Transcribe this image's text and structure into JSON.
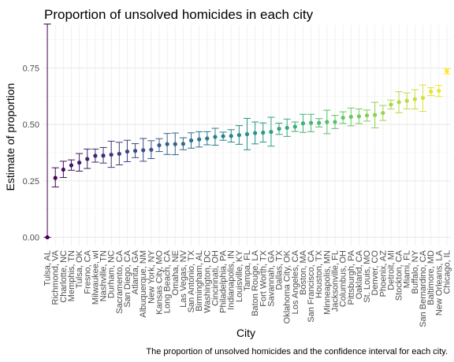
{
  "chart_data": {
    "type": "scatter",
    "title": "Proportion of unsolved homicides in each city",
    "xlabel": "City",
    "ylabel": "Estimate of proportion",
    "caption": "The proportion of unsolved homicides and the confidence interval for each city.",
    "ylim": [
      -0.04,
      0.94
    ],
    "yticks": [
      "0.00",
      "0.25",
      "0.50",
      "0.75"
    ],
    "yticks_values": [
      0,
      0.25,
      0.5,
      0.75
    ],
    "grid": true,
    "legend": "none",
    "color_scale": "viridis",
    "cities": [
      {
        "name": "Tulsa, AL",
        "estimate": 0.0,
        "low": 0.0,
        "high": 0.945
      },
      {
        "name": "Richmond, VA",
        "estimate": 0.263,
        "low": 0.223,
        "high": 0.308
      },
      {
        "name": "Charlotte, NC",
        "estimate": 0.3,
        "low": 0.265,
        "high": 0.337
      },
      {
        "name": "Memphis, TN",
        "estimate": 0.319,
        "low": 0.297,
        "high": 0.343
      },
      {
        "name": "Tulsa, OK",
        "estimate": 0.331,
        "low": 0.293,
        "high": 0.371
      },
      {
        "name": "Fresno, CA",
        "estimate": 0.347,
        "low": 0.305,
        "high": 0.391
      },
      {
        "name": "Milwaukee, wI",
        "estimate": 0.361,
        "low": 0.333,
        "high": 0.391
      },
      {
        "name": "Nashville, TN",
        "estimate": 0.362,
        "low": 0.329,
        "high": 0.398
      },
      {
        "name": "Durham, NC",
        "estimate": 0.366,
        "low": 0.31,
        "high": 0.426
      },
      {
        "name": "Sacramento, CA",
        "estimate": 0.37,
        "low": 0.321,
        "high": 0.421
      },
      {
        "name": "San Diego, CA",
        "estimate": 0.38,
        "low": 0.335,
        "high": 0.43
      },
      {
        "name": "Atlanta, GA",
        "estimate": 0.383,
        "low": 0.353,
        "high": 0.415
      },
      {
        "name": "Albuquerque, NM",
        "estimate": 0.386,
        "low": 0.337,
        "high": 0.438
      },
      {
        "name": "New York, NY",
        "estimate": 0.388,
        "low": 0.349,
        "high": 0.428
      },
      {
        "name": "Kansas City, MO",
        "estimate": 0.408,
        "low": 0.38,
        "high": 0.437
      },
      {
        "name": "Long Beach, CA",
        "estimate": 0.413,
        "low": 0.367,
        "high": 0.46
      },
      {
        "name": "Omaha, NE",
        "estimate": 0.413,
        "low": 0.366,
        "high": 0.462
      },
      {
        "name": "Las Vegas, NV",
        "estimate": 0.414,
        "low": 0.388,
        "high": 0.441
      },
      {
        "name": "San Antonio, TX",
        "estimate": 0.429,
        "low": 0.395,
        "high": 0.463
      },
      {
        "name": "Birmingham, AL",
        "estimate": 0.434,
        "low": 0.4,
        "high": 0.468
      },
      {
        "name": "Washington, DC",
        "estimate": 0.438,
        "low": 0.41,
        "high": 0.468
      },
      {
        "name": "Cincinnati, OH",
        "estimate": 0.445,
        "low": 0.408,
        "high": 0.483
      },
      {
        "name": "Philadelphia, PA",
        "estimate": 0.448,
        "low": 0.43,
        "high": 0.466
      },
      {
        "name": "Indianapolis, IN",
        "estimate": 0.449,
        "low": 0.422,
        "high": 0.477
      },
      {
        "name": "Louisville, KY",
        "estimate": 0.453,
        "low": 0.412,
        "high": 0.495
      },
      {
        "name": "Tampa, FL",
        "estimate": 0.457,
        "low": 0.388,
        "high": 0.527
      },
      {
        "name": "Baton Rouge, LA",
        "estimate": 0.462,
        "low": 0.414,
        "high": 0.511
      },
      {
        "name": "Fort Worth, TX",
        "estimate": 0.464,
        "low": 0.422,
        "high": 0.507
      },
      {
        "name": "Savannah, GA",
        "estimate": 0.467,
        "low": 0.404,
        "high": 0.532
      },
      {
        "name": "Dallas, TX",
        "estimate": 0.481,
        "low": 0.456,
        "high": 0.506
      },
      {
        "name": "Oklahoma City, OK",
        "estimate": 0.485,
        "low": 0.447,
        "high": 0.524
      },
      {
        "name": "Los Angeles, CA",
        "estimate": 0.49,
        "low": 0.469,
        "high": 0.511
      },
      {
        "name": "Boston, MA",
        "estimate": 0.505,
        "low": 0.465,
        "high": 0.545
      },
      {
        "name": "San Francisco, CA",
        "estimate": 0.507,
        "low": 0.468,
        "high": 0.545
      },
      {
        "name": "Houston, TX",
        "estimate": 0.507,
        "low": 0.489,
        "high": 0.526
      },
      {
        "name": "Minneapolis, MN",
        "estimate": 0.511,
        "low": 0.459,
        "high": 0.563
      },
      {
        "name": "Jacksonville, FL",
        "estimate": 0.511,
        "low": 0.482,
        "high": 0.54
      },
      {
        "name": "Columbus, OH",
        "estimate": 0.53,
        "low": 0.505,
        "high": 0.556
      },
      {
        "name": "Pittsburgh, PA",
        "estimate": 0.534,
        "low": 0.494,
        "high": 0.573
      },
      {
        "name": "Oakland, CA",
        "estimate": 0.536,
        "low": 0.504,
        "high": 0.569
      },
      {
        "name": "St. Louis, MO",
        "estimate": 0.54,
        "low": 0.515,
        "high": 0.564
      },
      {
        "name": "Denver, CO",
        "estimate": 0.542,
        "low": 0.485,
        "high": 0.598
      },
      {
        "name": "Phoenix, AZ",
        "estimate": 0.551,
        "low": 0.518,
        "high": 0.584
      },
      {
        "name": "Detroit, MI",
        "estimate": 0.588,
        "low": 0.569,
        "high": 0.608
      },
      {
        "name": "Stockton, CA",
        "estimate": 0.599,
        "low": 0.552,
        "high": 0.645
      },
      {
        "name": "Miami, FL",
        "estimate": 0.605,
        "low": 0.569,
        "high": 0.64
      },
      {
        "name": "Buffalo, NY",
        "estimate": 0.612,
        "low": 0.569,
        "high": 0.654
      },
      {
        "name": "San Bernardino, CA",
        "estimate": 0.618,
        "low": 0.558,
        "high": 0.675
      },
      {
        "name": "Baltimore, MD",
        "estimate": 0.646,
        "low": 0.628,
        "high": 0.663
      },
      {
        "name": "New Orleans, LA",
        "estimate": 0.649,
        "low": 0.624,
        "high": 0.673
      },
      {
        "name": "Chicago, IL",
        "estimate": 0.736,
        "low": 0.724,
        "high": 0.747
      }
    ]
  }
}
